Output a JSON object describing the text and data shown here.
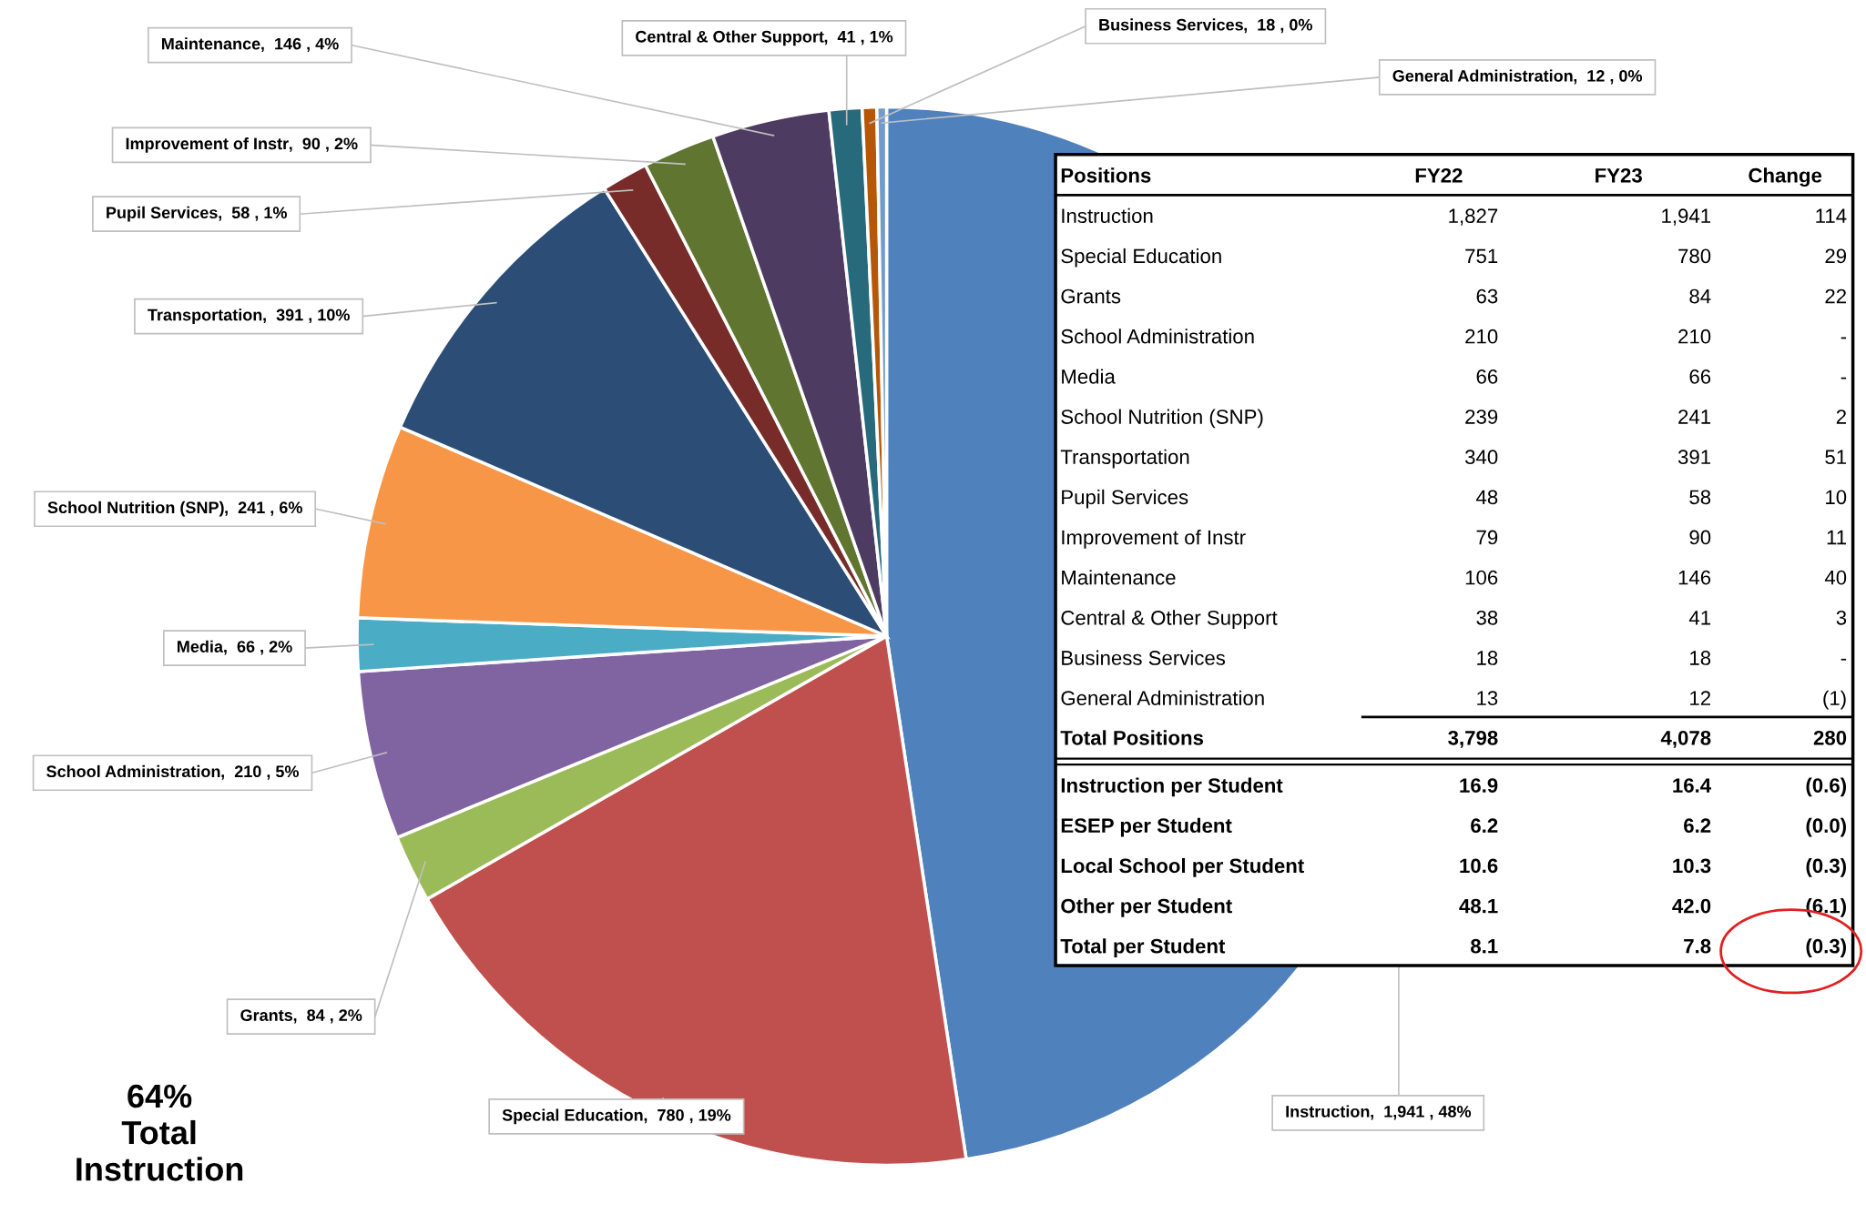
{
  "chart_data": [
    {
      "type": "pie",
      "categories": [
        "Instruction",
        "Special Education",
        "Grants",
        "School Administration",
        "Media",
        "School Nutrition (SNP)",
        "Transportation",
        "Pupil Services",
        "Improvement of Instr",
        "Maintenance",
        "Central & Other Support",
        "Business Services",
        "General Administration"
      ],
      "values": [
        1941,
        780,
        84,
        210,
        66,
        241,
        391,
        58,
        90,
        146,
        41,
        18,
        12
      ],
      "colors": [
        "#4f81bd",
        "#c0504d",
        "#9bbb59",
        "#8064a2",
        "#4bacc6",
        "#f79646",
        "#2c4d75",
        "#772c2a",
        "#5f7530",
        "#4d3b62",
        "#276a7c",
        "#b65708",
        "#729aca"
      ],
      "value_labels": [
        ",  1,941 , 48%",
        ",  780 , 19%",
        ",  84 , 2%",
        ",  210 , 5%",
        ",  66 , 2%",
        ",  241 , 6%",
        ",  391 , 10%",
        ",  58 , 1%",
        ",  90 , 2%",
        ",  146 , 4%",
        ",  41 , 1%",
        ",  18 , 0%",
        ",  12 , 0%"
      ],
      "annotations": [
        "64%\nTotal\nInstruction"
      ]
    },
    {
      "type": "other",
      "ylabel": "Positions",
      "categories": [
        "FY22",
        "FY23",
        "Change"
      ],
      "y_categories": [
        "Instruction",
        "Special Education",
        "Grants",
        "School Administration",
        "Media",
        "School Nutrition (SNP)",
        "Transportation",
        "Pupil Services",
        "Improvement of Instr",
        "Maintenance",
        "Central & Other Support",
        "Business Services",
        "General Administration",
        "Total Positions",
        "Instruction per Student",
        "ESEP per Student",
        "Local School per Student",
        "Other per Student",
        "Total per Student"
      ],
      "cell_labels": [
        [
          "1,827",
          "1,941",
          "114"
        ],
        [
          "751",
          "780",
          "29"
        ],
        [
          "63",
          "84",
          "22"
        ],
        [
          "210",
          "210",
          "-"
        ],
        [
          "66",
          "66",
          "-"
        ],
        [
          "239",
          "241",
          "2"
        ],
        [
          "340",
          "391",
          "51"
        ],
        [
          "48",
          "58",
          "10"
        ],
        [
          "79",
          "90",
          "11"
        ],
        [
          "106",
          "146",
          "40"
        ],
        [
          "38",
          "41",
          "3"
        ],
        [
          "18",
          "18",
          "-"
        ],
        [
          "13",
          "12",
          "(1)"
        ],
        [
          "3,798",
          "4,078",
          "280"
        ],
        [
          "16.9",
          "16.4",
          "(0.6)"
        ],
        [
          "6.2",
          "6.2",
          "(0.0)"
        ],
        [
          "10.6",
          "10.3",
          "(0.3)"
        ],
        [
          "48.1",
          "42.0",
          "(6.1)"
        ],
        [
          "8.1",
          "7.8",
          "(0.3)"
        ]
      ]
    }
  ]
}
